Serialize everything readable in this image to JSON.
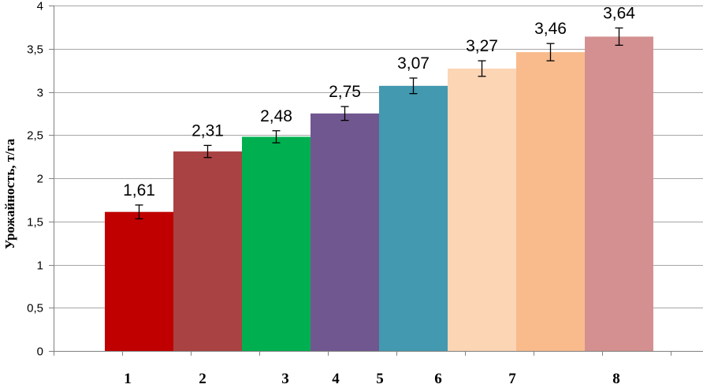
{
  "chart_data": {
    "type": "bar",
    "ylabel": "Урожайность, т/га",
    "ylim": [
      0,
      4
    ],
    "ytick_step": 0.5,
    "ytick_labels": [
      "0",
      "0,5",
      "1",
      "1,5",
      "2",
      "2,5",
      "3",
      "3,5",
      "4"
    ],
    "grid": true,
    "value_labels": [
      "1,61",
      "2,31",
      "2,48",
      "2,75",
      "3,07",
      "3,27",
      "3,46",
      "3,64"
    ],
    "values": [
      1.61,
      2.31,
      2.48,
      2.75,
      3.07,
      3.27,
      3.46,
      3.64
    ],
    "error": [
      0.08,
      0.07,
      0.07,
      0.08,
      0.09,
      0.09,
      0.1,
      0.1
    ],
    "colors": [
      "#C00000",
      "#A94242",
      "#00B050",
      "#715790",
      "#4299B0",
      "#FCD5B5",
      "#F9BB8C",
      "#D49090"
    ],
    "x_labels": [
      "1",
      "2",
      "3",
      "4",
      "5",
      "6",
      "7",
      "8"
    ]
  }
}
